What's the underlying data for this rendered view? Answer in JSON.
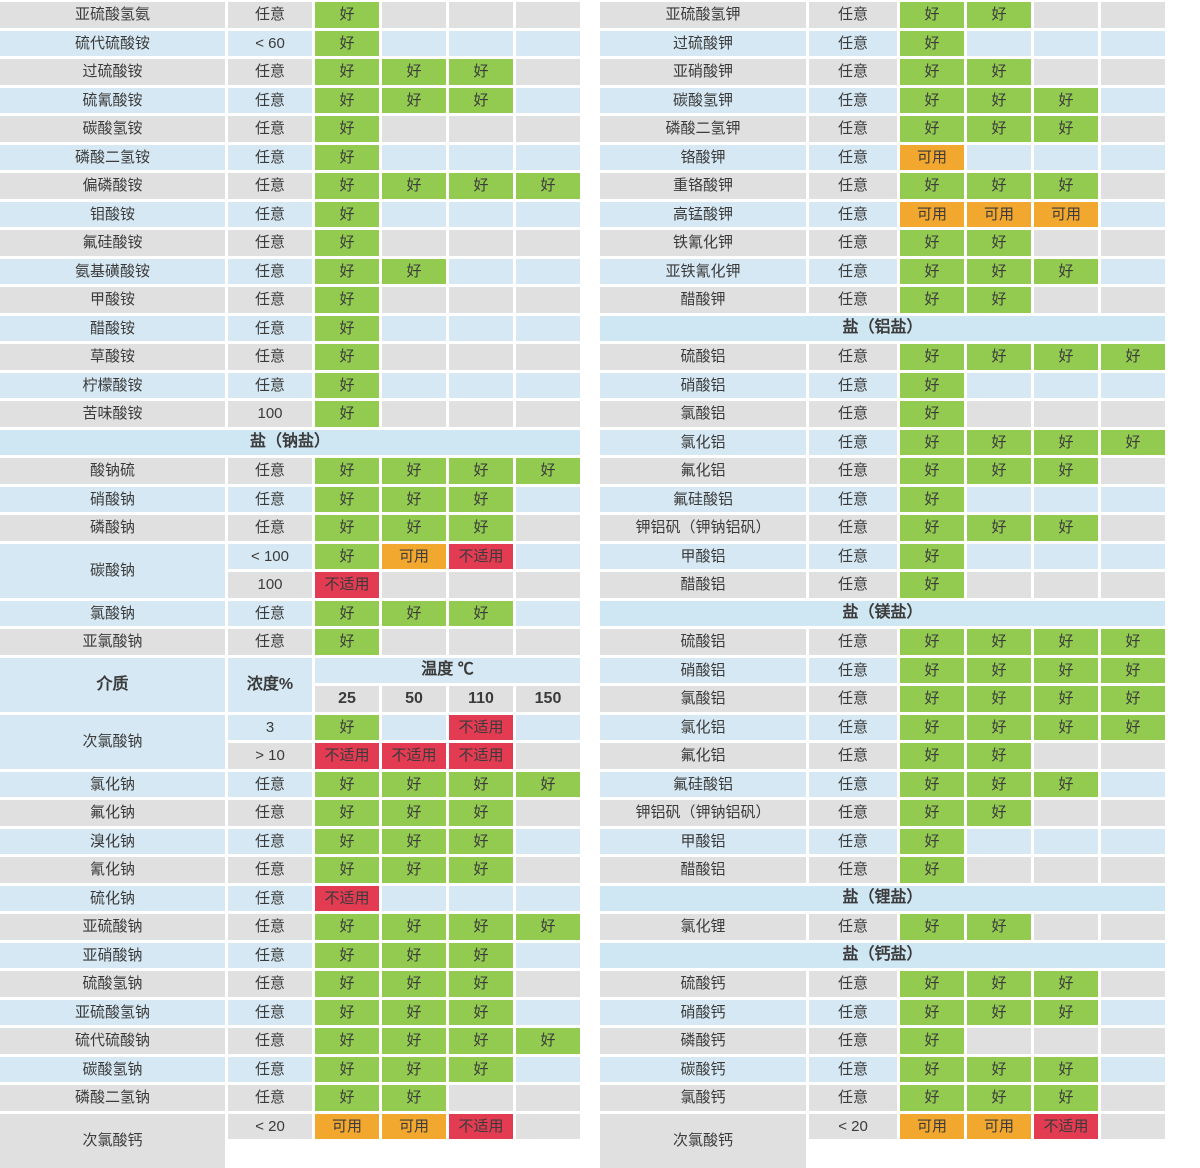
{
  "status_labels": {
    "good": "好",
    "usable": "可用",
    "unsuitable": "不适用"
  },
  "colors": {
    "good": "#92cb50",
    "usable": "#f2a72e",
    "unsuitable": "#e23b52",
    "row_gray": "#e0e0e0",
    "row_blue": "#d5e8f3",
    "section_blue": "#cfe6f3"
  },
  "header": {
    "medium": "介质",
    "concentration": "浓度%",
    "temperature": "温度 ℃",
    "temps": [
      "25",
      "50",
      "110",
      "150"
    ]
  },
  "tables": [
    {
      "rows": [
        {
          "type": "data",
          "shade": "gray",
          "name": "亚硫酸氢氨",
          "conc": "任意",
          "cells": [
            "good",
            "",
            "",
            ""
          ]
        },
        {
          "type": "data",
          "shade": "blue",
          "name": "硫代硫酸铵",
          "conc": "< 60",
          "cells": [
            "good",
            "",
            "",
            ""
          ]
        },
        {
          "type": "data",
          "shade": "gray",
          "name": "过硫酸铵",
          "conc": "任意",
          "cells": [
            "good",
            "good",
            "good",
            ""
          ]
        },
        {
          "type": "data",
          "shade": "blue",
          "name": "硫氰酸铵",
          "conc": "任意",
          "cells": [
            "good",
            "good",
            "good",
            ""
          ]
        },
        {
          "type": "data",
          "shade": "gray",
          "name": "碳酸氢铵",
          "conc": "任意",
          "cells": [
            "good",
            "",
            "",
            ""
          ]
        },
        {
          "type": "data",
          "shade": "blue",
          "name": "磷酸二氢铵",
          "conc": "任意",
          "cells": [
            "good",
            "",
            "",
            ""
          ]
        },
        {
          "type": "data",
          "shade": "gray",
          "name": "偏磷酸铵",
          "conc": "任意",
          "cells": [
            "good",
            "good",
            "good",
            "good"
          ]
        },
        {
          "type": "data",
          "shade": "blue",
          "name": "钼酸铵",
          "conc": "任意",
          "cells": [
            "good",
            "",
            "",
            ""
          ]
        },
        {
          "type": "data",
          "shade": "gray",
          "name": "氟硅酸铵",
          "conc": "任意",
          "cells": [
            "good",
            "",
            "",
            ""
          ]
        },
        {
          "type": "data",
          "shade": "blue",
          "name": "氨基磺酸铵",
          "conc": "任意",
          "cells": [
            "good",
            "good",
            "",
            ""
          ]
        },
        {
          "type": "data",
          "shade": "gray",
          "name": "甲酸铵",
          "conc": "任意",
          "cells": [
            "good",
            "",
            "",
            ""
          ]
        },
        {
          "type": "data",
          "shade": "blue",
          "name": "醋酸铵",
          "conc": "任意",
          "cells": [
            "good",
            "",
            "",
            ""
          ]
        },
        {
          "type": "data",
          "shade": "gray",
          "name": "草酸铵",
          "conc": "任意",
          "cells": [
            "good",
            "",
            "",
            ""
          ]
        },
        {
          "type": "data",
          "shade": "blue",
          "name": "柠檬酸铵",
          "conc": "任意",
          "cells": [
            "good",
            "",
            "",
            ""
          ]
        },
        {
          "type": "data",
          "shade": "gray",
          "name": "苦味酸铵",
          "conc": "100",
          "cells": [
            "good",
            "",
            "",
            ""
          ]
        },
        {
          "type": "section",
          "label": "盐（钠盐）"
        },
        {
          "type": "data",
          "shade": "gray",
          "name": "酸钠硫",
          "conc": "任意",
          "cells": [
            "good",
            "good",
            "good",
            "good"
          ]
        },
        {
          "type": "data",
          "shade": "blue",
          "name": "硝酸钠",
          "conc": "任意",
          "cells": [
            "good",
            "good",
            "good",
            ""
          ]
        },
        {
          "type": "data",
          "shade": "gray",
          "name": "磷酸钠",
          "conc": "任意",
          "cells": [
            "good",
            "good",
            "good",
            ""
          ]
        },
        {
          "type": "multi",
          "shade": "blue",
          "name": "碳酸钠",
          "subrows": [
            {
              "shade": "blue",
              "conc": "< 100",
              "cells": [
                "good",
                "usable",
                "unsuitable",
                ""
              ]
            },
            {
              "shade": "gray",
              "conc": "100",
              "cells": [
                "unsuitable",
                "",
                "",
                ""
              ]
            }
          ]
        },
        {
          "type": "data",
          "shade": "blue",
          "name": "氯酸钠",
          "conc": "任意",
          "cells": [
            "good",
            "good",
            "good",
            ""
          ]
        },
        {
          "type": "data",
          "shade": "gray",
          "name": "亚氯酸钠",
          "conc": "任意",
          "cells": [
            "good",
            "",
            "",
            ""
          ]
        },
        {
          "type": "colheader"
        },
        {
          "type": "multi",
          "shade": "blue",
          "name": "次氯酸钠",
          "subrows": [
            {
              "shade": "blue",
              "conc": "3",
              "cells": [
                "good",
                "",
                "unsuitable",
                ""
              ]
            },
            {
              "shade": "gray",
              "conc": "> 10",
              "cells": [
                "unsuitable",
                "unsuitable",
                "unsuitable",
                ""
              ]
            }
          ]
        },
        {
          "type": "data",
          "shade": "blue",
          "name": "氯化钠",
          "conc": "任意",
          "cells": [
            "good",
            "good",
            "good",
            "good"
          ]
        },
        {
          "type": "data",
          "shade": "gray",
          "name": "氟化钠",
          "conc": "任意",
          "cells": [
            "good",
            "good",
            "good",
            ""
          ]
        },
        {
          "type": "data",
          "shade": "blue",
          "name": "溴化钠",
          "conc": "任意",
          "cells": [
            "good",
            "good",
            "good",
            ""
          ]
        },
        {
          "type": "data",
          "shade": "gray",
          "name": "氰化钠",
          "conc": "任意",
          "cells": [
            "good",
            "good",
            "good",
            ""
          ]
        },
        {
          "type": "data",
          "shade": "blue",
          "name": "硫化钠",
          "conc": "任意",
          "cells": [
            "unsuitable",
            "",
            "",
            ""
          ]
        },
        {
          "type": "data",
          "shade": "gray",
          "name": "亚硫酸钠",
          "conc": "任意",
          "cells": [
            "good",
            "good",
            "good",
            "good"
          ]
        },
        {
          "type": "data",
          "shade": "blue",
          "name": "亚硝酸钠",
          "conc": "任意",
          "cells": [
            "good",
            "good",
            "good",
            ""
          ]
        },
        {
          "type": "data",
          "shade": "gray",
          "name": "硫酸氢钠",
          "conc": "任意",
          "cells": [
            "good",
            "good",
            "good",
            ""
          ]
        },
        {
          "type": "data",
          "shade": "blue",
          "name": "亚硫酸氢钠",
          "conc": "任意",
          "cells": [
            "good",
            "good",
            "good",
            ""
          ]
        },
        {
          "type": "data",
          "shade": "gray",
          "name": "硫代硫酸钠",
          "conc": "任意",
          "cells": [
            "good",
            "good",
            "good",
            "good"
          ]
        },
        {
          "type": "data",
          "shade": "blue",
          "name": "碳酸氢钠",
          "conc": "任意",
          "cells": [
            "good",
            "good",
            "good",
            ""
          ]
        },
        {
          "type": "data",
          "shade": "gray",
          "name": "磷酸二氢钠",
          "conc": "任意",
          "cells": [
            "good",
            "good",
            "",
            ""
          ]
        },
        {
          "type": "multi",
          "shade": "gray",
          "span": 2,
          "name": "次氯酸钙",
          "subrows": [
            {
              "shade": "gray",
              "conc": "< 20",
              "cells": [
                "usable",
                "usable",
                "unsuitable",
                ""
              ]
            }
          ]
        }
      ]
    },
    {
      "rows": [
        {
          "type": "data",
          "shade": "gray",
          "name": "亚硫酸氢钾",
          "conc": "任意",
          "cells": [
            "good",
            "good",
            "",
            ""
          ]
        },
        {
          "type": "data",
          "shade": "blue",
          "name": "过硫酸钾",
          "conc": "任意",
          "cells": [
            "good",
            "",
            "",
            ""
          ]
        },
        {
          "type": "data",
          "shade": "gray",
          "name": "亚硝酸钾",
          "conc": "任意",
          "cells": [
            "good",
            "good",
            "",
            ""
          ]
        },
        {
          "type": "data",
          "shade": "blue",
          "name": "碳酸氢钾",
          "conc": "任意",
          "cells": [
            "good",
            "good",
            "good",
            ""
          ]
        },
        {
          "type": "data",
          "shade": "gray",
          "name": "磷酸二氢钾",
          "conc": "任意",
          "cells": [
            "good",
            "good",
            "good",
            ""
          ]
        },
        {
          "type": "data",
          "shade": "blue",
          "name": "铬酸钾",
          "conc": "任意",
          "cells": [
            "usable",
            "",
            "",
            ""
          ]
        },
        {
          "type": "data",
          "shade": "gray",
          "name": "重铬酸钾",
          "conc": "任意",
          "cells": [
            "good",
            "good",
            "good",
            ""
          ]
        },
        {
          "type": "data",
          "shade": "blue",
          "name": "高锰酸钾",
          "conc": "任意",
          "cells": [
            "usable",
            "usable",
            "usable",
            ""
          ]
        },
        {
          "type": "data",
          "shade": "gray",
          "name": "铁氰化钾",
          "conc": "任意",
          "cells": [
            "good",
            "good",
            "",
            ""
          ]
        },
        {
          "type": "data",
          "shade": "blue",
          "name": "亚铁氰化钾",
          "conc": "任意",
          "cells": [
            "good",
            "good",
            "good",
            ""
          ]
        },
        {
          "type": "data",
          "shade": "gray",
          "name": "醋酸钾",
          "conc": "任意",
          "cells": [
            "good",
            "good",
            "",
            ""
          ]
        },
        {
          "type": "section",
          "label": "盐（铝盐）"
        },
        {
          "type": "data",
          "shade": "gray",
          "name": "硫酸铝",
          "conc": "任意",
          "cells": [
            "good",
            "good",
            "good",
            "good"
          ]
        },
        {
          "type": "data",
          "shade": "blue",
          "name": "硝酸铝",
          "conc": "任意",
          "cells": [
            "good",
            "",
            "",
            ""
          ]
        },
        {
          "type": "data",
          "shade": "gray",
          "name": "氯酸铝",
          "conc": "任意",
          "cells": [
            "good",
            "",
            "",
            ""
          ]
        },
        {
          "type": "data",
          "shade": "blue",
          "name": "氯化铝",
          "conc": "任意",
          "cells": [
            "good",
            "good",
            "good",
            "good"
          ]
        },
        {
          "type": "data",
          "shade": "gray",
          "name": "氟化铝",
          "conc": "任意",
          "cells": [
            "good",
            "good",
            "good",
            ""
          ]
        },
        {
          "type": "data",
          "shade": "blue",
          "name": "氟硅酸铝",
          "conc": "任意",
          "cells": [
            "good",
            "",
            "",
            ""
          ]
        },
        {
          "type": "data",
          "shade": "gray",
          "name": "钾铝矾（钾钠铝矾）",
          "conc": "任意",
          "cells": [
            "good",
            "good",
            "good",
            ""
          ]
        },
        {
          "type": "data",
          "shade": "blue",
          "name": "甲酸铝",
          "conc": "任意",
          "cells": [
            "good",
            "",
            "",
            ""
          ]
        },
        {
          "type": "data",
          "shade": "gray",
          "name": "醋酸铝",
          "conc": "任意",
          "cells": [
            "good",
            "",
            "",
            ""
          ]
        },
        {
          "type": "section",
          "label": "盐（镁盐）"
        },
        {
          "type": "data",
          "shade": "gray",
          "name": "硫酸铝",
          "conc": "任意",
          "cells": [
            "good",
            "good",
            "good",
            "good"
          ]
        },
        {
          "type": "data",
          "shade": "blue",
          "name": "硝酸铝",
          "conc": "任意",
          "cells": [
            "good",
            "good",
            "good",
            "good"
          ]
        },
        {
          "type": "data",
          "shade": "gray",
          "name": "氯酸铝",
          "conc": "任意",
          "cells": [
            "good",
            "good",
            "good",
            "good"
          ]
        },
        {
          "type": "data",
          "shade": "blue",
          "name": "氯化铝",
          "conc": "任意",
          "cells": [
            "good",
            "good",
            "good",
            "good"
          ]
        },
        {
          "type": "data",
          "shade": "gray",
          "name": "氟化铝",
          "conc": "任意",
          "cells": [
            "good",
            "good",
            "",
            ""
          ]
        },
        {
          "type": "data",
          "shade": "blue",
          "name": "氟硅酸铝",
          "conc": "任意",
          "cells": [
            "good",
            "good",
            "good",
            ""
          ]
        },
        {
          "type": "data",
          "shade": "gray",
          "name": "钾铝矾（钾钠铝矾）",
          "conc": "任意",
          "cells": [
            "good",
            "good",
            "",
            ""
          ]
        },
        {
          "type": "data",
          "shade": "blue",
          "name": "甲酸铝",
          "conc": "任意",
          "cells": [
            "good",
            "",
            "",
            ""
          ]
        },
        {
          "type": "data",
          "shade": "gray",
          "name": "醋酸铝",
          "conc": "任意",
          "cells": [
            "good",
            "",
            "",
            ""
          ]
        },
        {
          "type": "section",
          "label": "盐（锂盐）"
        },
        {
          "type": "data",
          "shade": "gray",
          "name": "氯化锂",
          "conc": "任意",
          "cells": [
            "good",
            "good",
            "",
            ""
          ]
        },
        {
          "type": "section",
          "label": "盐（钙盐）"
        },
        {
          "type": "data",
          "shade": "gray",
          "name": "硫酸钙",
          "conc": "任意",
          "cells": [
            "good",
            "good",
            "good",
            ""
          ]
        },
        {
          "type": "data",
          "shade": "blue",
          "name": "硝酸钙",
          "conc": "任意",
          "cells": [
            "good",
            "good",
            "good",
            ""
          ]
        },
        {
          "type": "data",
          "shade": "gray",
          "name": "磷酸钙",
          "conc": "任意",
          "cells": [
            "good",
            "",
            "",
            ""
          ]
        },
        {
          "type": "data",
          "shade": "blue",
          "name": "碳酸钙",
          "conc": "任意",
          "cells": [
            "good",
            "good",
            "good",
            ""
          ]
        },
        {
          "type": "data",
          "shade": "gray",
          "name": "氯酸钙",
          "conc": "任意",
          "cells": [
            "good",
            "good",
            "good",
            ""
          ]
        },
        {
          "type": "multi",
          "shade": "gray",
          "span": 2,
          "name": "次氯酸钙",
          "subrows": [
            {
              "shade": "gray",
              "conc": "< 20",
              "cells": [
                "usable",
                "usable",
                "unsuitable",
                ""
              ]
            }
          ]
        }
      ]
    }
  ]
}
